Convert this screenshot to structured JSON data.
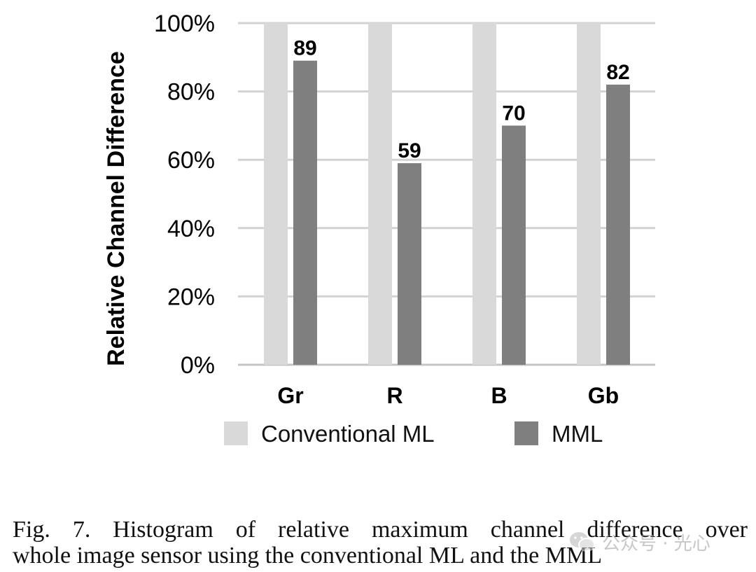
{
  "chart_data": {
    "type": "bar",
    "categories": [
      "Gr",
      "R",
      "B",
      "Gb"
    ],
    "series": [
      {
        "name": "Conventional ML",
        "values": [
          100,
          100,
          100,
          100
        ],
        "color": "#d9d9d9"
      },
      {
        "name": "MML",
        "values": [
          89,
          59,
          70,
          82
        ],
        "color": "#7f7f7f",
        "data_labels": [
          "89",
          "59",
          "70",
          "82"
        ]
      }
    ],
    "ylabel": "Relative Channel Difference",
    "xlabel": "",
    "ylim": [
      0,
      100
    ],
    "yticks": [
      0,
      20,
      40,
      60,
      80,
      100
    ],
    "ytick_labels": [
      "0%",
      "20%",
      "40%",
      "60%",
      "80%",
      "100%"
    ],
    "grid": true,
    "legend_position": "bottom"
  },
  "caption": {
    "line1": "Fig. 7.  Histogram of relative maximum channel difference over",
    "line2": "whole image sensor using the conventional ML and the MML"
  },
  "watermark": {
    "text": "公众号 · 光心",
    "icon": "wechat-icon"
  }
}
